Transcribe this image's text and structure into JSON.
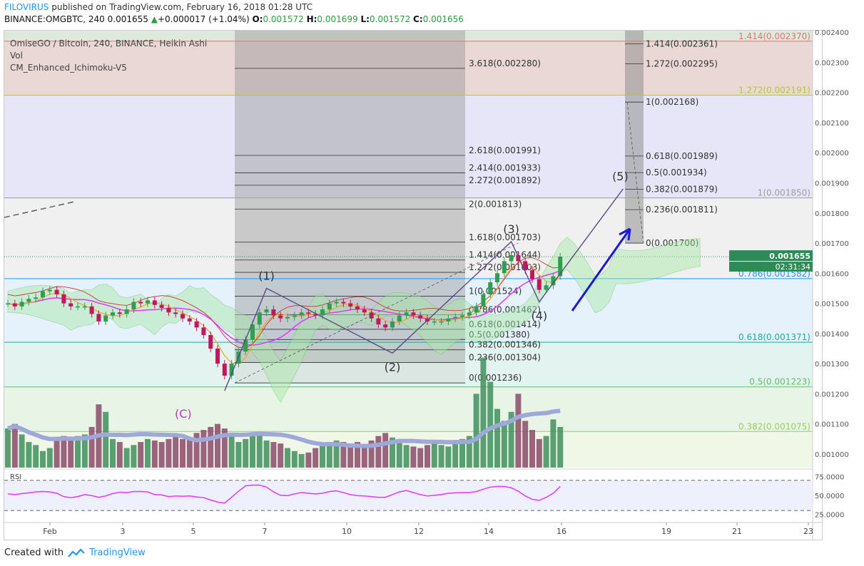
{
  "header": {
    "user": "FILOVIRUS",
    "published": "published on TradingView.com, February 16, 2018 01:28 UTC",
    "symbol": "BINANCE:OMGBTC, 240",
    "last": "0.001655",
    "change": "+0.000017 (+1.04%)",
    "o_label": "O:",
    "o": "0.001572",
    "h_label": "H:",
    "h": "0.001699",
    "l_label": "L:",
    "l": "0.001572",
    "c_label": "C:",
    "c": "0.001656"
  },
  "legend": [
    "OmiseGO / Bitcoin, 240, BINANCE, Heikin Ashi",
    "Vol",
    "CM_Enhanced_Ichimoku-V5"
  ],
  "footer": {
    "created": "Created with",
    "brand": "TradingView",
    "logo_icon": "tradingview-logo-icon"
  },
  "colors": {
    "up": "#2e8b57",
    "down": "#c2185b",
    "accent": "#2196f3",
    "magenta": "#e040fb",
    "orange": "#f5a623",
    "pattern": "#5a4a8a",
    "arrow": "#1a1ad6"
  },
  "chart_data": {
    "type": "candlestick",
    "price_axis": {
      "ylim": [
        0.000955,
        0.002405
      ],
      "ticks": [
        "0.001000",
        "0.001100",
        "0.001200",
        "0.001300",
        "0.001400",
        "0.001500",
        "0.001600",
        "0.001700",
        "0.001800",
        "0.001900",
        "0.002000",
        "0.002100",
        "0.002200",
        "0.002300",
        "0.002400"
      ]
    },
    "x_axis": {
      "ticks": [
        "Feb",
        "3",
        "5",
        "7",
        "10",
        "12",
        "14",
        "16",
        "19",
        "21",
        "23"
      ]
    },
    "current_price": "0.001655",
    "countdown": "02:31:34",
    "fib_retracement": [
      {
        "label": "1.414(0.002370)",
        "value": 0.00237,
        "color": "#e57373"
      },
      {
        "label": "1.272(0.002191)",
        "value": 0.002191,
        "color": "#b5c92a"
      },
      {
        "label": "1(0.001850)",
        "value": 0.00185,
        "color": "#9e9e9e"
      },
      {
        "label": "0.786(0.001582)",
        "value": 0.001582,
        "color": "#2196f3"
      },
      {
        "label": "0.618(0.001371)",
        "value": 0.001371,
        "color": "#26a69a"
      },
      {
        "label": "0.5(0.001223)",
        "value": 0.001223,
        "color": "#66bb6a"
      },
      {
        "label": "0.382(0.001075)",
        "value": 0.001075,
        "color": "#9ccc65"
      }
    ],
    "fib_extension_a": [
      {
        "label": "3.618(0.002280)",
        "value": 0.00228
      },
      {
        "label": "2.618(0.001991)",
        "value": 0.001991
      },
      {
        "label": "2.414(0.001933)",
        "value": 0.001933
      },
      {
        "label": "2.272(0.001892)",
        "value": 0.001892
      },
      {
        "label": "2(0.001813)",
        "value": 0.001813
      },
      {
        "label": "1.618(0.001703)",
        "value": 0.001703
      },
      {
        "label": "1.414(0.001644)",
        "value": 0.001644
      },
      {
        "label": "1.272(0.001603)",
        "value": 0.001603
      },
      {
        "label": "1(0.001524)",
        "value": 0.001524
      },
      {
        "label": "0.786(0.001462)",
        "value": 0.001462
      },
      {
        "label": "0.618(0.001414)",
        "value": 0.001414
      },
      {
        "label": "0.5(0.001380)",
        "value": 0.00138
      },
      {
        "label": "0.382(0.001346)",
        "value": 0.001346
      },
      {
        "label": "0.236(0.001304)",
        "value": 0.001304
      },
      {
        "label": "0(0.001236)",
        "value": 0.001236
      }
    ],
    "fib_extension_b": [
      {
        "label": "1.414(0.002361)",
        "value": 0.002361
      },
      {
        "label": "1.272(0.002295)",
        "value": 0.002295
      },
      {
        "label": "1(0.002168)",
        "value": 0.002168
      },
      {
        "label": "0.618(0.001989)",
        "value": 0.001989
      },
      {
        "label": "0.5(0.001934)",
        "value": 0.001934
      },
      {
        "label": "0.382(0.001879)",
        "value": 0.001879
      },
      {
        "label": "0.236(0.001811)",
        "value": 0.001811
      },
      {
        "label": "0(0.001700)",
        "value": 0.0017
      }
    ],
    "wave_labels": [
      "(1)",
      "(2)",
      "(3)",
      "(4)",
      "(5)",
      "(C)"
    ],
    "wave_points": [
      {
        "label": "(C)",
        "bar": 31,
        "value": 0.00121
      },
      {
        "label": "(1)",
        "bar": 37,
        "value": 0.00155
      },
      {
        "label": "(2)",
        "bar": 55,
        "value": 0.001335
      },
      {
        "label": "(3)",
        "bar": 72,
        "value": 0.001705
      },
      {
        "label": "(4)",
        "bar": 76,
        "value": 0.001505
      },
      {
        "label": "(5)",
        "bar": 88,
        "value": 0.00188
      }
    ],
    "rsi": {
      "label": "RSI",
      "ylim": [
        15,
        85
      ],
      "ticks": [
        "75.0000",
        "50.0000",
        "25.0000"
      ],
      "bands": [
        70,
        30
      ]
    },
    "closes": [
      0.0015,
      0.00149,
      0.001505,
      0.001515,
      0.00152,
      0.00154,
      0.001545,
      0.00153,
      0.0015,
      0.00149,
      0.00149,
      0.00149,
      0.001465,
      0.00144,
      0.00146,
      0.00147,
      0.001465,
      0.00148,
      0.001505,
      0.0015,
      0.00151,
      0.001495,
      0.001485,
      0.00147,
      0.001465,
      0.00145,
      0.00144,
      0.00142,
      0.001395,
      0.00135,
      0.0013,
      0.00126,
      0.0013,
      0.00134,
      0.00138,
      0.00143,
      0.00147,
      0.00148,
      0.00146,
      0.00145,
      0.001455,
      0.00146,
      0.00147,
      0.001465,
      0.00146,
      0.00148,
      0.0015,
      0.001505,
      0.0015,
      0.00149,
      0.00148,
      0.00147,
      0.00145,
      0.00143,
      0.00142,
      0.00144,
      0.00146,
      0.00147,
      0.00146,
      0.00145,
      0.00144,
      0.00144,
      0.00144,
      0.00145,
      0.001455,
      0.00146,
      0.00147,
      0.00149,
      0.00153,
      0.00157,
      0.0016,
      0.00164,
      0.00166,
      0.00164,
      0.00161,
      0.00158,
      0.001545,
      0.00156,
      0.00159,
      0.001655
    ],
    "volumes": [
      0.001085,
      0.0011,
      0.001065,
      0.00104,
      0.00103,
      0.00101,
      0.00102,
      0.001055,
      0.00106,
      0.001045,
      0.00106,
      0.001065,
      0.00109,
      0.001165,
      0.00114,
      0.00105,
      0.00104,
      0.00102,
      0.00103,
      0.00104,
      0.00105,
      0.001045,
      0.00104,
      0.00105,
      0.00106,
      0.00105,
      0.00105,
      0.00107,
      0.00108,
      0.00109,
      0.0011,
      0.001085,
      0.00107,
      0.00104,
      0.00105,
      0.00106,
      0.00107,
      0.001045,
      0.00104,
      0.001035,
      0.00102,
      0.00101,
      0.001,
      0.001005,
      0.00102,
      0.00103,
      0.00104,
      0.001045,
      0.00104,
      0.001035,
      0.00104,
      0.00103,
      0.001045,
      0.00106,
      0.00107,
      0.001055,
      0.00105,
      0.00103,
      0.001025,
      0.00102,
      0.00103,
      0.00104,
      0.00103,
      0.001025,
      0.00104,
      0.00105,
      0.00106,
      0.0012,
      0.00132,
      0.00124,
      0.00115,
      0.00111,
      0.00114,
      0.0012,
      0.00111,
      0.00108,
      0.00105,
      0.00106,
      0.001115,
      0.00109
    ]
  }
}
